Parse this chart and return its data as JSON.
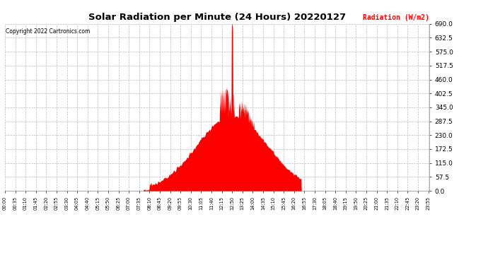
{
  "title": "Solar Radiation per Minute (24 Hours) 20220127",
  "ylabel": "Radiation (W/m2)",
  "copyright": "Copyright 2022 Cartronics.com",
  "fill_color": "#ff0000",
  "background_color": "#ffffff",
  "grid_color": "#bbbbbb",
  "ymin": 0.0,
  "ymax": 690.0,
  "yticks": [
    0.0,
    57.5,
    115.0,
    172.5,
    230.0,
    287.5,
    345.0,
    402.5,
    460.0,
    517.5,
    575.0,
    632.5,
    690.0
  ],
  "hline_color": "#ff0000",
  "peak_line_color": "#888888",
  "tick_interval": 35,
  "n_minutes": 1440,
  "sunrise": 470,
  "sunset": 1005,
  "peak_minute": 770,
  "peak_value": 688,
  "figsize": [
    6.9,
    3.75
  ],
  "dpi": 100
}
